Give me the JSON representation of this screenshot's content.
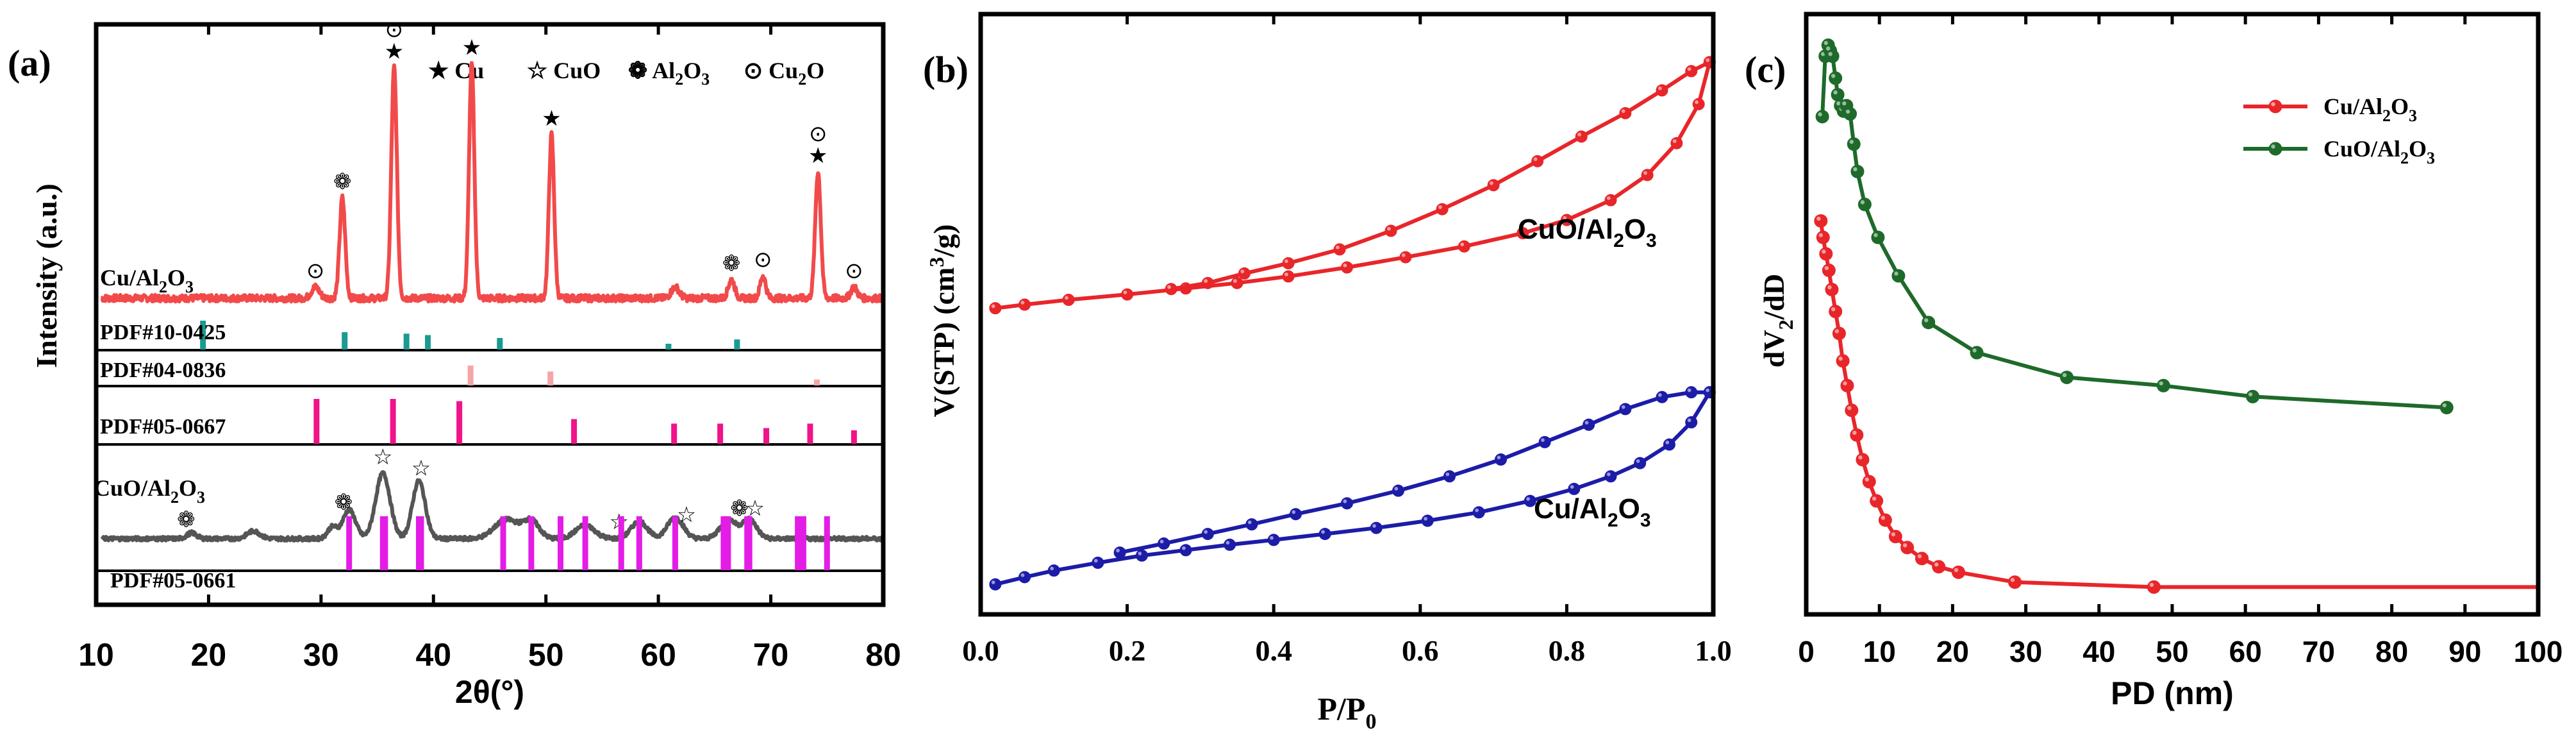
{
  "colors": {
    "red": "#e8262a",
    "xrd_red": "#f24a4a",
    "gray": "#555555",
    "teal": "#1a9a93",
    "pink": "#f4a6a6",
    "magenta": "#f0138a",
    "violet": "#e31ce6",
    "navy": "#1c1ca8",
    "green": "#1e6a2a",
    "black": "#000000"
  },
  "chart_data": [
    {
      "type": "line",
      "panel_label": "(a)",
      "xlabel": "2θ(°)",
      "ylabel": "Intensity (a.u.)",
      "xlim": [
        10,
        80
      ],
      "xticks": [
        10,
        20,
        30,
        40,
        50,
        60,
        70,
        80
      ],
      "legend": [
        {
          "symbol": "★",
          "label": "Cu"
        },
        {
          "symbol": "☆",
          "label": "CuO"
        },
        {
          "symbol": "❁",
          "label": "Al",
          "sub": "2",
          "label2": "O",
          "sub2": "3"
        },
        {
          "symbol": "⊙",
          "label": "Cu",
          "sub": "2",
          "label2": "O"
        }
      ],
      "series": [
        {
          "name": "Cu/Al2O3",
          "label": "Cu/Al",
          "label_sub": "2",
          "label2": "O",
          "label_sub2": "3",
          "color": "#f24a4a",
          "baseline": 4.3,
          "noise": 0.18,
          "peaks": [
            [
              29.5,
              0.3,
              0.5
            ],
            [
              31.9,
              2.7,
              0.35
            ],
            [
              36.5,
              6.2,
              0.35
            ],
            [
              43.4,
              6.3,
              0.33
            ],
            [
              50.5,
              4.4,
              0.33
            ],
            [
              61.5,
              0.3,
              0.5
            ],
            [
              66.5,
              0.5,
              0.4
            ],
            [
              69.3,
              0.6,
              0.35
            ],
            [
              74.2,
              3.4,
              0.35
            ],
            [
              77.4,
              0.3,
              0.4
            ]
          ]
        },
        {
          "name": "CuO/Al2O3",
          "label": "CuO/Al",
          "label_sub": "2",
          "label2": "O",
          "label_sub2": "3",
          "color": "#555555",
          "baseline": 3.4,
          "noise": 0.2,
          "peaks": [
            [
              18.5,
              0.3,
              0.6
            ],
            [
              24.0,
              0.4,
              0.8
            ],
            [
              31.0,
              0.6,
              0.6
            ],
            [
              32.5,
              1.5,
              0.8
            ],
            [
              35.5,
              3.4,
              0.9
            ],
            [
              38.7,
              3.0,
              0.8
            ],
            [
              46.5,
              1.0,
              1.5
            ],
            [
              48.7,
              0.9,
              1.0
            ],
            [
              53.5,
              0.7,
              1.2
            ],
            [
              58.3,
              0.9,
              1.0
            ],
            [
              61.5,
              1.1,
              1.0
            ],
            [
              66.2,
              1.0,
              1.0
            ],
            [
              68.1,
              1.0,
              0.9
            ]
          ]
        }
      ],
      "reference_patterns": [
        {
          "name": "PDF#10-0425",
          "color": "#1a9a93",
          "sticks": [
            [
              19.5,
              1.0
            ],
            [
              32.1,
              0.6
            ],
            [
              37.6,
              0.55
            ],
            [
              39.5,
              0.5
            ],
            [
              45.9,
              0.4
            ],
            [
              60.9,
              0.2
            ],
            [
              67.0,
              0.35
            ]
          ]
        },
        {
          "name": "PDF#04-0836",
          "color": "#f4a6a6",
          "sticks": [
            [
              43.3,
              1.0
            ],
            [
              50.4,
              0.7
            ],
            [
              74.1,
              0.3
            ]
          ]
        },
        {
          "name": "PDF#05-0667",
          "color": "#f0138a",
          "sticks": [
            [
              29.6,
              1.0
            ],
            [
              36.4,
              1.0
            ],
            [
              42.3,
              0.95
            ],
            [
              52.5,
              0.55
            ],
            [
              61.4,
              0.45
            ],
            [
              65.5,
              0.45
            ],
            [
              69.6,
              0.35
            ],
            [
              73.5,
              0.45
            ],
            [
              77.4,
              0.3
            ]
          ]
        },
        {
          "name": "PDF#05-0661",
          "color": "#e31ce6",
          "sticks": [
            [
              32.5,
              1.0
            ],
            [
              35.5,
              1.0
            ],
            [
              35.7,
              1.0
            ],
            [
              38.7,
              1.0
            ],
            [
              38.9,
              1.0
            ],
            [
              46.2,
              1.0
            ],
            [
              48.7,
              1.0
            ],
            [
              51.3,
              1.0
            ],
            [
              53.5,
              1.0
            ],
            [
              56.7,
              1.0
            ],
            [
              58.3,
              1.0
            ],
            [
              61.5,
              1.0
            ],
            [
              65.8,
              1.0
            ],
            [
              66.2,
              1.0
            ],
            [
              67.9,
              1.0
            ],
            [
              68.1,
              1.0
            ],
            [
              72.4,
              1.0
            ],
            [
              72.9,
              1.0
            ],
            [
              75.0,
              1.0
            ]
          ]
        }
      ],
      "peak_markers": [
        {
          "series": "Cu/Al2O3",
          "x": 29.5,
          "symbols": "⊙"
        },
        {
          "series": "Cu/Al2O3",
          "x": 31.9,
          "symbols": "❁"
        },
        {
          "series": "Cu/Al2O3",
          "x": 36.5,
          "symbols": "⊙★"
        },
        {
          "series": "Cu/Al2O3",
          "x": 43.4,
          "symbols": "★"
        },
        {
          "series": "Cu/Al2O3",
          "x": 50.5,
          "symbols": "★"
        },
        {
          "series": "Cu/Al2O3",
          "x": 66.5,
          "symbols": "❁"
        },
        {
          "series": "Cu/Al2O3",
          "x": 69.3,
          "symbols": "⊙"
        },
        {
          "series": "Cu/Al2O3",
          "x": 74.2,
          "symbols": "⊙★"
        },
        {
          "series": "Cu/Al2O3",
          "x": 77.4,
          "symbols": "⊙"
        },
        {
          "series": "CuO/Al2O3",
          "x": 18.0,
          "symbols": "❁"
        },
        {
          "series": "CuO/Al2O3",
          "x": 32.0,
          "symbols": "❁"
        },
        {
          "series": "CuO/Al2O3",
          "x": 35.5,
          "symbols": "☆"
        },
        {
          "series": "CuO/Al2O3",
          "x": 38.9,
          "symbols": "☆"
        },
        {
          "series": "CuO/Al2O3",
          "x": 56.5,
          "symbols": "☆"
        },
        {
          "series": "CuO/Al2O3",
          "x": 62.5,
          "symbols": "☆"
        },
        {
          "series": "CuO/Al2O3",
          "x": 67.2,
          "symbols": "❁"
        },
        {
          "series": "CuO/Al2O3",
          "x": 68.6,
          "symbols": "☆"
        }
      ]
    },
    {
      "type": "line",
      "panel_label": "(b)",
      "xlabel": "P/P",
      "xlabel_sub": "0",
      "ylabel": "V(STP) (cm",
      "ylabel_sup": "3",
      "ylabel_end": "/g)",
      "xlim": [
        0,
        1.0
      ],
      "xticks": [
        0.0,
        0.2,
        0.4,
        0.6,
        0.8,
        1.0
      ],
      "xtick_labels": [
        "0.0",
        "0.2",
        "0.4",
        "0.6",
        "0.8",
        "1.0"
      ],
      "ylim": [
        0,
        100
      ],
      "series": [
        {
          "name": "CuO/Al2O3",
          "label": "CuO/Al",
          "label_sub": "2",
          "label2": "O",
          "label_sub2": "3",
          "color": "#e8262a",
          "adsorption": {
            "x": [
              0.02,
              0.06,
              0.12,
              0.2,
              0.28,
              0.35,
              0.42,
              0.5,
              0.58,
              0.66,
              0.74,
              0.8,
              0.86,
              0.91,
              0.95,
              0.98,
              0.995
            ],
            "y": [
              51.0,
              51.6,
              52.4,
              53.3,
              54.3,
              55.2,
              56.3,
              57.8,
              59.5,
              61.3,
              63.5,
              65.7,
              69.0,
              73.2,
              78.5,
              85.0,
              92.0
            ]
          },
          "desorption": {
            "x": [
              0.995,
              0.97,
              0.93,
              0.88,
              0.82,
              0.76,
              0.7,
              0.63,
              0.56,
              0.49,
              0.42,
              0.36,
              0.31,
              0.26
            ],
            "y": [
              92.0,
              90.5,
              87.3,
              83.5,
              79.6,
              75.5,
              71.5,
              67.5,
              63.9,
              60.8,
              58.5,
              56.8,
              55.2,
              54.2
            ]
          }
        },
        {
          "name": "Cu/Al2O3",
          "label": "Cu/Al",
          "label_sub": "2",
          "label2": "O",
          "label_sub2": "3",
          "color": "#1c1ca8",
          "adsorption": {
            "x": [
              0.02,
              0.06,
              0.1,
              0.16,
              0.22,
              0.28,
              0.34,
              0.4,
              0.47,
              0.54,
              0.61,
              0.68,
              0.75,
              0.81,
              0.86,
              0.9,
              0.94,
              0.97,
              0.995
            ],
            "y": [
              5.0,
              6.2,
              7.3,
              8.6,
              9.8,
              10.7,
              11.6,
              12.4,
              13.4,
              14.4,
              15.6,
              17.0,
              18.9,
              20.9,
              23.0,
              25.2,
              28.3,
              32.0,
              37.0
            ]
          },
          "desorption": {
            "x": [
              0.995,
              0.97,
              0.93,
              0.88,
              0.83,
              0.77,
              0.71,
              0.64,
              0.57,
              0.5,
              0.43,
              0.37,
              0.31,
              0.25,
              0.19
            ],
            "y": [
              37.0,
              37.0,
              36.2,
              34.2,
              31.6,
              28.7,
              25.8,
              23.0,
              20.6,
              18.5,
              16.7,
              15.0,
              13.4,
              11.8,
              10.3
            ]
          }
        }
      ]
    },
    {
      "type": "line",
      "panel_label": "(c)",
      "xlabel": "PD (nm)",
      "ylabel": "dV",
      "ylabel_sub": "2",
      "ylabel_end": "/dD",
      "xlim": [
        0,
        100
      ],
      "xticks": [
        0,
        10,
        20,
        30,
        40,
        50,
        60,
        70,
        80,
        90,
        100
      ],
      "ylim": [
        0,
        100
      ],
      "series": [
        {
          "name": "Cu/Al2O3",
          "label": "Cu/Al",
          "label_sub": "2",
          "label2": "O",
          "label_sub2": "3",
          "color": "#e8262a",
          "x": [
            2.0,
            2.3,
            2.7,
            3.1,
            3.5,
            4.0,
            4.5,
            5.0,
            5.6,
            6.2,
            6.9,
            7.7,
            8.6,
            9.6,
            10.8,
            12.2,
            13.8,
            15.8,
            18.1,
            20.8,
            28.5,
            47.5
          ],
          "y": [
            67.0,
            64.0,
            61.0,
            58.0,
            54.5,
            50.5,
            46.5,
            41.5,
            37.0,
            32.5,
            28.0,
            23.5,
            19.5,
            16.0,
            12.5,
            9.5,
            7.5,
            5.5,
            4.0,
            3.0,
            1.2,
            0.3
          ],
          "tail_to": 100
        },
        {
          "name": "CuO/Al2O3",
          "label": "CuO/Al",
          "label_sub": "2",
          "label2": "O",
          "label_sub2": "3",
          "color": "#1e6a2a",
          "x": [
            2.2,
            2.6,
            3.0,
            3.3,
            3.6,
            4.0,
            4.3,
            4.7,
            5.1,
            5.5,
            6.0,
            6.5,
            7.0,
            8.0,
            9.8,
            12.6,
            16.7,
            23.3,
            35.6,
            48.8,
            61.0,
            87.5
          ],
          "y": [
            86.0,
            97.0,
            99.0,
            98.0,
            97.0,
            93.0,
            90.0,
            88.0,
            87.0,
            88.0,
            86.5,
            81.0,
            76.0,
            70.0,
            64.0,
            57.0,
            48.5,
            43.0,
            38.5,
            37.0,
            35.0,
            33.0
          ]
        }
      ]
    }
  ]
}
